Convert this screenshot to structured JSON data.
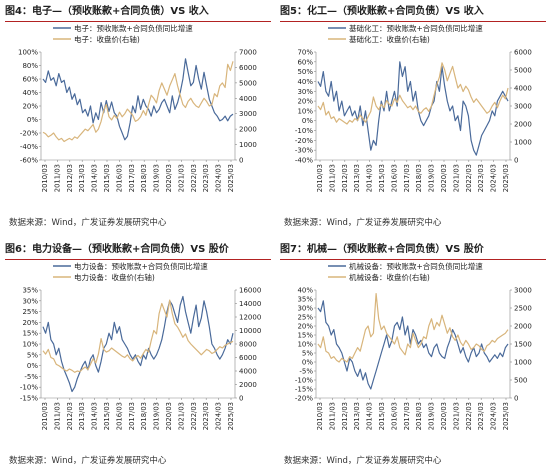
{
  "colors": {
    "blue": "#4a6a9a",
    "gold": "#d8b57c",
    "title_rule": "#b22222"
  },
  "source_text": "数据来源：Wind，广发证券发展研究中心",
  "chart_data": [
    {
      "type": "line",
      "title": "图4：电子—（预收账款+合同负债）VS 收入",
      "x_ticks": [
        "2010/03",
        "2011/03",
        "2012/03",
        "2013/03",
        "2014/03",
        "2015/03",
        "2016/03",
        "2017/03",
        "2018/03",
        "2019/03",
        "2020/03",
        "2021/03",
        "2022/03",
        "2023/03",
        "2024/03",
        "2025/03"
      ],
      "left_ticks": [
        "-60%",
        "-40%",
        "-20%",
        "0%",
        "20%",
        "40%",
        "60%",
        "80%",
        "100%"
      ],
      "ylim_left": [
        -60,
        100
      ],
      "right_ticks": [
        "0",
        "1000",
        "2000",
        "3000",
        "4000",
        "5000",
        "6000",
        "7000"
      ],
      "ylim_right": [
        0,
        7000
      ],
      "series": [
        {
          "name": "电子：预收账款+合同负债同比增速",
          "axis": "left",
          "values": [
            60,
            55,
            72,
            58,
            62,
            50,
            68,
            55,
            58,
            40,
            48,
            30,
            38,
            22,
            30,
            10,
            15,
            5,
            20,
            -5,
            10,
            0,
            25,
            10,
            28,
            12,
            26,
            10,
            5,
            -10,
            -20,
            -30,
            -25,
            -5,
            20,
            10,
            35,
            15,
            30,
            20,
            15,
            5,
            20,
            10,
            15,
            25,
            30,
            20,
            10,
            35,
            15,
            25,
            40,
            60,
            90,
            70,
            50,
            55,
            80,
            60,
            45,
            70,
            50,
            30,
            20,
            10,
            5,
            -2,
            0,
            5,
            -2,
            5,
            8
          ]
        },
        {
          "name": "电子：收盘价(右轴)",
          "axis": "right",
          "values": [
            1800,
            1700,
            1500,
            1600,
            1750,
            1500,
            1300,
            1400,
            1200,
            1300,
            1400,
            1300,
            1500,
            1400,
            1600,
            1800,
            2000,
            1900,
            2100,
            2300,
            1800,
            2000,
            2500,
            3200,
            3600,
            2800,
            2600,
            2900,
            2700,
            3100,
            2800,
            3000,
            3300,
            3100,
            2900,
            2500,
            2600,
            2800,
            3200,
            2900,
            3600,
            4200,
            4000,
            3700,
            4500,
            5000,
            4600,
            4200,
            4800,
            5200,
            5600,
            4800,
            4200,
            3600,
            3400,
            3800,
            4000,
            3700,
            3500,
            3400,
            3700,
            4000,
            3800,
            3500,
            3600,
            4300,
            4100,
            4800,
            5000,
            4700,
            6200,
            5800,
            6400
          ]
        }
      ]
    },
    {
      "type": "line",
      "title": "图5：化工—（预收账款+合同负债）VS 收入",
      "x_ticks": [
        "2010/03",
        "2011/03",
        "2012/03",
        "2013/03",
        "2014/03",
        "2015/03",
        "2016/03",
        "2017/03",
        "2018/03",
        "2019/03",
        "2020/03",
        "2021/03",
        "2022/03",
        "2023/03",
        "2024/03",
        "2025/03"
      ],
      "left_ticks": [
        "-40%",
        "-30%",
        "-20%",
        "-10%",
        "0%",
        "10%",
        "20%",
        "30%",
        "40%",
        "50%",
        "60%",
        "70%"
      ],
      "ylim_left": [
        -40,
        70
      ],
      "right_ticks": [
        "0",
        "1000",
        "2000",
        "3000",
        "4000",
        "5000",
        "6000"
      ],
      "ylim_right": [
        0,
        6000
      ],
      "series": [
        {
          "name": "基础化工：预收账款+合同负债同比增速",
          "axis": "left",
          "values": [
            40,
            35,
            50,
            30,
            25,
            40,
            20,
            30,
            10,
            20,
            5,
            10,
            15,
            5,
            10,
            0,
            15,
            -5,
            10,
            -10,
            -30,
            -20,
            -25,
            0,
            20,
            10,
            30,
            10,
            20,
            30,
            15,
            60,
            45,
            55,
            30,
            40,
            20,
            30,
            10,
            0,
            -5,
            0,
            5,
            15,
            20,
            40,
            30,
            55,
            35,
            20,
            10,
            15,
            0,
            5,
            -10,
            20,
            15,
            5,
            -20,
            -30,
            -35,
            -25,
            -15,
            -10,
            -5,
            0,
            10,
            5,
            20,
            25,
            30,
            25,
            20
          ]
        },
        {
          "name": "基础化工：收盘价(右轴)",
          "axis": "right",
          "values": [
            3000,
            2800,
            3200,
            2500,
            2700,
            2300,
            2400,
            2100,
            2300,
            2200,
            2100,
            2000,
            2200,
            2100,
            2300,
            2200,
            2500,
            2300,
            2100,
            2400,
            2700,
            3500,
            3000,
            2800,
            3100,
            2900,
            3300,
            3100,
            3000,
            3400,
            3200,
            3600,
            3300,
            3100,
            2900,
            3000,
            2800,
            3000,
            2700,
            2600,
            2800,
            2900,
            2700,
            3000,
            3600,
            4200,
            4600,
            5400,
            5000,
            4400,
            4800,
            5200,
            4600,
            4000,
            4200,
            3800,
            4100,
            3900,
            3500,
            3200,
            3400,
            3200,
            3000,
            2800,
            2600,
            2700,
            3000,
            3200,
            2900,
            3300,
            3600,
            3400,
            4000
          ]
        }
      ]
    },
    {
      "type": "line",
      "title": "图6：电力设备—（预收账款+合同负债）VS 股价",
      "x_ticks": [
        "2010/03",
        "2011/03",
        "2012/03",
        "2013/03",
        "2014/03",
        "2015/03",
        "2016/03",
        "2017/03",
        "2018/03",
        "2019/03",
        "2020/03",
        "2021/03",
        "2022/03",
        "2023/03",
        "2024/03",
        "2025/03"
      ],
      "left_ticks": [
        "-15%",
        "-10%",
        "-5%",
        "0%",
        "5%",
        "10%",
        "15%",
        "20%",
        "25%",
        "30%",
        "35%"
      ],
      "ylim_left": [
        -15,
        35
      ],
      "right_ticks": [
        "0",
        "2000",
        "4000",
        "6000",
        "8000",
        "10000",
        "12000",
        "14000",
        "16000"
      ],
      "ylim_right": [
        0,
        16000
      ],
      "series": [
        {
          "name": "电力设备：预收账款+合同负债同比增速",
          "axis": "left",
          "values": [
            18,
            15,
            20,
            12,
            10,
            5,
            8,
            2,
            -2,
            -5,
            -8,
            -12,
            -10,
            -6,
            -3,
            0,
            2,
            -2,
            3,
            5,
            0,
            -3,
            2,
            8,
            10,
            15,
            12,
            20,
            15,
            18,
            12,
            10,
            8,
            5,
            3,
            5,
            2,
            0,
            5,
            3,
            8,
            5,
            3,
            5,
            8,
            12,
            18,
            25,
            30,
            28,
            24,
            20,
            28,
            32,
            25,
            20,
            15,
            22,
            28,
            18,
            22,
            30,
            25,
            18,
            10,
            8,
            5,
            3,
            5,
            8,
            12,
            10,
            15
          ]
        },
        {
          "name": "电力设备：收盘价(右轴)",
          "axis": "right",
          "values": [
            7000,
            6500,
            7200,
            6000,
            5800,
            5000,
            4800,
            4500,
            4200,
            4000,
            4300,
            4100,
            3800,
            4000,
            3900,
            4300,
            4600,
            4200,
            5000,
            5800,
            5200,
            6500,
            8800,
            7200,
            6800,
            7000,
            7400,
            7100,
            6800,
            6500,
            6200,
            6000,
            6400,
            5800,
            5500,
            6000,
            6300,
            5900,
            6600,
            7200,
            6800,
            8500,
            10000,
            9500,
            12500,
            14000,
            13000,
            12000,
            14500,
            12500,
            11000,
            10500,
            9800,
            9000,
            9500,
            8500,
            8000,
            7600,
            7200,
            6800,
            6400,
            6800,
            7200,
            7000,
            6600,
            6800,
            7200,
            7600,
            7400,
            7800,
            8000,
            8200,
            8400
          ]
        }
      ]
    },
    {
      "type": "line",
      "title": "图7：机械—（预收账款+合同负债）VS 股价",
      "x_ticks": [
        "2010/03",
        "2011/03",
        "2012/03",
        "2013/03",
        "2014/03",
        "2015/03",
        "2016/03",
        "2017/03",
        "2018/03",
        "2019/03",
        "2020/03",
        "2021/03",
        "2022/03",
        "2023/03",
        "2024/03",
        "2025/03"
      ],
      "left_ticks": [
        "-20%",
        "-15%",
        "-10%",
        "-5%",
        "0%",
        "5%",
        "10%",
        "15%",
        "20%",
        "25%",
        "30%",
        "35%",
        "40%"
      ],
      "ylim_left": [
        -20,
        40
      ],
      "right_ticks": [
        "0",
        "500",
        "1000",
        "1500",
        "2000",
        "2500",
        "3000"
      ],
      "ylim_right": [
        0,
        3000
      ],
      "series": [
        {
          "name": "机械设备：预收账款+合同负债同比增速",
          "axis": "left",
          "values": [
            30,
            28,
            34,
            22,
            20,
            15,
            18,
            10,
            8,
            5,
            0,
            -5,
            2,
            0,
            -5,
            -8,
            -4,
            -10,
            -6,
            -12,
            -15,
            -10,
            -5,
            0,
            5,
            10,
            15,
            8,
            12,
            20,
            22,
            18,
            25,
            15,
            20,
            10,
            18,
            15,
            10,
            12,
            8,
            10,
            5,
            3,
            8,
            10,
            5,
            3,
            2,
            8,
            12,
            18,
            15,
            10,
            5,
            8,
            3,
            0,
            5,
            8,
            3,
            5,
            10,
            5,
            3,
            0,
            2,
            4,
            2,
            5,
            3,
            8,
            10
          ]
        },
        {
          "name": "机械设备：收盘价(右轴)",
          "axis": "right",
          "values": [
            1500,
            1400,
            1700,
            1300,
            1250,
            1100,
            1150,
            1050,
            1000,
            1100,
            1050,
            1000,
            1150,
            1100,
            1250,
            1400,
            1300,
            1600,
            1900,
            2000,
            1700,
            1800,
            2900,
            2200,
            1900,
            2000,
            1800,
            1700,
            1600,
            1500,
            1700,
            1400,
            1300,
            1200,
            1500,
            1400,
            1800,
            1600,
            1400,
            1500,
            1700,
            1650,
            2000,
            2200,
            1900,
            2100,
            2000,
            2300,
            2050,
            1800,
            1950,
            1700,
            1600,
            1750,
            1550,
            1450,
            1600,
            1500,
            1350,
            1400,
            1500,
            1450,
            1350,
            1300,
            1450,
            1500,
            1600,
            1550,
            1650,
            1700,
            1750,
            1800,
            1900
          ]
        }
      ]
    }
  ]
}
